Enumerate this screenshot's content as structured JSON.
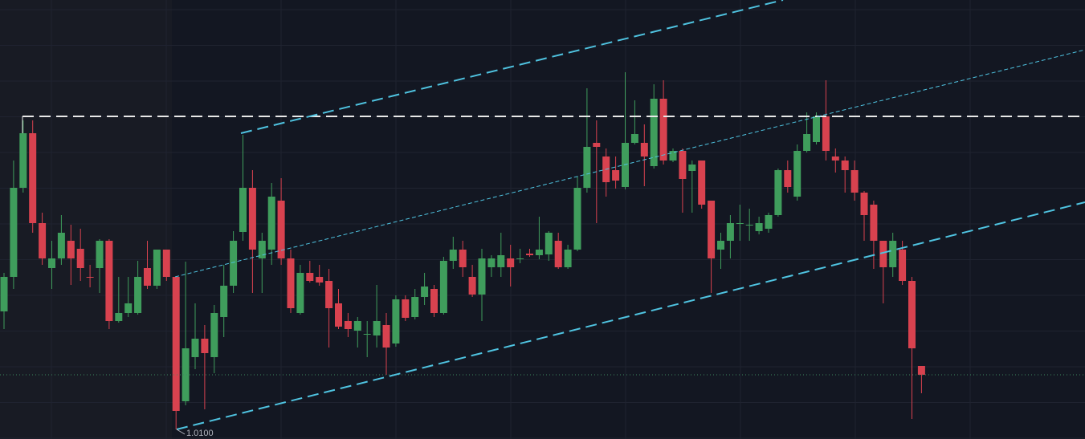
{
  "chart_data": {
    "type": "candlestick",
    "annotation": "1.0100",
    "ylim": [
      1.0094,
      1.03675
    ],
    "up_color": "#3f9d5c",
    "down_color": "#d8424f",
    "grid": true,
    "open": [
      1.01735,
      1.0195,
      1.02505,
      1.02845,
      1.02285,
      1.02005,
      1.02065,
      1.02175,
      1.02125,
      1.0195,
      1.02005,
      1.02175,
      1.01675,
      1.01725,
      1.01725,
      1.02005,
      1.01895,
      1.0212,
      1.0195,
      1.01175,
      1.0145,
      1.01565,
      1.0145,
      1.017,
      1.01895,
      1.0223,
      1.02505,
      1.02065,
      1.0212,
      1.02425,
      1.02065,
      1.01725,
      1.01975,
      1.0195,
      1.01925,
      1.01785,
      1.01675,
      1.01615,
      1.0159,
      1.01585,
      1.0165,
      1.01535,
      1.0181,
      1.017,
      1.01825,
      1.01875,
      1.01725,
      1.0205,
      1.0212,
      1.0195,
      1.0184,
      1.0201,
      1.0201,
      1.02065,
      1.0206,
      1.02095,
      1.02085,
      1.0209,
      1.02175,
      1.0201,
      1.0212,
      1.02505,
      1.02785,
      1.027,
      1.02615,
      1.0251,
      1.02785,
      1.02785,
      1.0264,
      1.0306,
      1.02675,
      1.02735,
      1.0261,
      1.02675,
      1.02425,
      1.0212,
      1.02175,
      1.0228,
      1.0227,
      1.02235,
      1.0225,
      1.02335,
      1.02615,
      1.0245,
      1.02735,
      1.0279,
      1.0295,
      1.027,
      1.02675,
      1.02615,
      1.02475,
      1.024,
      1.02175,
      1.0201,
      1.0212,
      1.01925,
      1.01395
    ],
    "high": [
      1.01975,
      1.02675,
      1.02925,
      1.02925,
      1.0235,
      1.02175,
      1.02335,
      1.02275,
      1.0225,
      1.02025,
      1.02185,
      1.02185,
      1.0195,
      1.0195,
      1.0205,
      1.02175,
      1.0212,
      1.0212,
      1.0195,
      1.02045,
      1.01785,
      1.0165,
      1.01775,
      1.02025,
      1.02235,
      1.02835,
      1.02615,
      1.02225,
      1.02535,
      1.02565,
      1.0212,
      1.02025,
      1.0205,
      1.02025,
      1.02,
      1.01875,
      1.01725,
      1.017,
      1.01675,
      1.019,
      1.01725,
      1.01835,
      1.01835,
      1.01875,
      1.01975,
      1.019,
      1.02075,
      1.022,
      1.02175,
      1.02025,
      1.02125,
      1.02085,
      1.02225,
      1.0215,
      1.02125,
      1.02125,
      1.02325,
      1.02235,
      1.02225,
      1.0215,
      1.02575,
      1.03125,
      1.02925,
      1.0275,
      1.027,
      1.03225,
      1.0305,
      1.029,
      1.0315,
      1.03175,
      1.0275,
      1.0275,
      1.02675,
      1.02675,
      1.02425,
      1.02225,
      1.02335,
      1.024,
      1.02375,
      1.02325,
      1.0235,
      1.02625,
      1.02675,
      1.02775,
      1.02975,
      1.02975,
      1.03175,
      1.0275,
      1.027,
      1.02675,
      1.02485,
      1.02425,
      1.02175,
      1.02225,
      1.02175,
      1.0195,
      1.01395
    ],
    "low": [
      1.01625,
      1.01875,
      1.02475,
      1.02225,
      1.02025,
      1.01875,
      1.02025,
      1.019,
      1.01925,
      1.01885,
      1.0185,
      1.01625,
      1.01665,
      1.017,
      1.01715,
      1.01875,
      1.01875,
      1.01925,
      1.01,
      1.0115,
      1.01375,
      1.01125,
      1.0135,
      1.01575,
      1.0185,
      1.02175,
      1.0185,
      1.0185,
      1.02025,
      1.02025,
      1.01725,
      1.01715,
      1.01915,
      1.01895,
      1.0151,
      1.01625,
      1.01575,
      1.0151,
      1.0145,
      1.0151,
      1.0134,
      1.01515,
      1.01675,
      1.01685,
      1.01775,
      1.017,
      1.01715,
      1.02,
      1.0195,
      1.01825,
      1.01675,
      1.0195,
      1.0195,
      1.0189,
      1.02035,
      1.02075,
      1.0206,
      1.0205,
      1.02,
      1.02,
      1.0211,
      1.02475,
      1.02285,
      1.0245,
      1.025,
      1.02495,
      1.02775,
      1.02515,
      1.02625,
      1.0265,
      1.02665,
      1.0235,
      1.0235,
      1.02375,
      1.0185,
      1.02,
      1.02065,
      1.02175,
      1.02175,
      1.02215,
      1.02225,
      1.02325,
      1.02475,
      1.02425,
      1.02725,
      1.02775,
      1.02675,
      1.026,
      1.02475,
      1.02425,
      1.02175,
      1.02,
      1.01785,
      1.0195,
      1.019,
      1.01065,
      1.01225
    ],
    "close": [
      1.0195,
      1.02505,
      1.02845,
      1.02285,
      1.02065,
      1.02065,
      1.02225,
      1.02065,
      1.02005,
      1.01945,
      1.02175,
      1.01675,
      1.01725,
      1.01785,
      1.0195,
      1.01895,
      1.0212,
      1.0195,
      1.01115,
      1.01505,
      1.01565,
      1.01475,
      1.01725,
      1.01895,
      1.02175,
      1.02505,
      1.0212,
      1.02175,
      1.0245,
      1.02065,
      1.01755,
      1.01975,
      1.01925,
      1.01915,
      1.01755,
      1.0164,
      1.01625,
      1.01675,
      1.01595,
      1.01675,
      1.0151,
      1.0181,
      1.01695,
      1.01825,
      1.0189,
      1.01725,
      1.0205,
      1.0212,
      1.0201,
      1.0184,
      1.02065,
      1.02065,
      1.02085,
      1.0201,
      1.02065,
      1.02085,
      1.0212,
      1.02225,
      1.0201,
      1.0212,
      1.02505,
      1.0276,
      1.0276,
      1.0254,
      1.0255,
      1.02785,
      1.0284,
      1.027,
      1.0306,
      1.02675,
      1.02735,
      1.0256,
      1.0265,
      1.024,
      1.02065,
      1.02175,
      1.02285,
      1.02285,
      1.02275,
      1.02285,
      1.02335,
      1.02615,
      1.0251,
      1.02735,
      1.0284,
      1.0295,
      1.02735,
      1.02675,
      1.02615,
      1.02475,
      1.02335,
      1.02175,
      1.0201,
      1.02175,
      1.01925,
      1.01505,
      1.0134
    ]
  }
}
